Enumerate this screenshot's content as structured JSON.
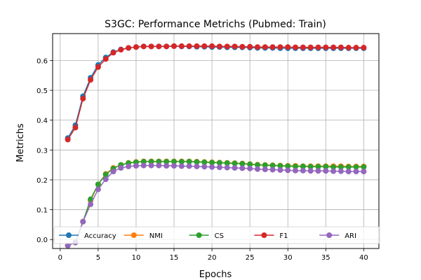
{
  "chart_data": {
    "type": "line",
    "title": "S3GC: Performance Metrichs (Pubmed: Train)",
    "xlabel": "Epochs",
    "ylabel": "Metrichs",
    "xlim": [
      -1,
      42
    ],
    "ylim": [
      -0.03,
      0.69
    ],
    "xticks": [
      0,
      5,
      10,
      15,
      20,
      25,
      30,
      35,
      40
    ],
    "yticks": [
      0.0,
      0.1,
      0.2,
      0.3,
      0.4,
      0.5,
      0.6
    ],
    "grid": true,
    "legend_position": "bottom",
    "x": [
      1,
      2,
      3,
      4,
      5,
      6,
      7,
      8,
      9,
      10,
      11,
      12,
      13,
      14,
      15,
      16,
      17,
      18,
      19,
      20,
      21,
      22,
      23,
      24,
      25,
      26,
      27,
      28,
      29,
      30,
      31,
      32,
      33,
      34,
      35,
      36,
      37,
      38,
      39,
      40
    ],
    "series": [
      {
        "name": "Accuracy",
        "color": "#1f77b4",
        "values": [
          0.34,
          0.383,
          0.48,
          0.542,
          0.585,
          0.61,
          0.628,
          0.637,
          0.642,
          0.645,
          0.647,
          0.647,
          0.647,
          0.647,
          0.648,
          0.647,
          0.647,
          0.646,
          0.646,
          0.645,
          0.645,
          0.644,
          0.644,
          0.644,
          0.643,
          0.642,
          0.642,
          0.642,
          0.641,
          0.641,
          0.641,
          0.641,
          0.641,
          0.641,
          0.641,
          0.641,
          0.641,
          0.641,
          0.641,
          0.641
        ]
      },
      {
        "name": "NMI",
        "color": "#ff7f0e",
        "values": [
          -0.02,
          -0.01,
          0.06,
          0.13,
          0.185,
          0.22,
          0.24,
          0.25,
          0.257,
          0.26,
          0.262,
          0.262,
          0.262,
          0.262,
          0.262,
          0.262,
          0.262,
          0.261,
          0.26,
          0.259,
          0.258,
          0.257,
          0.256,
          0.255,
          0.253,
          0.251,
          0.25,
          0.249,
          0.248,
          0.247,
          0.247,
          0.246,
          0.246,
          0.246,
          0.246,
          0.246,
          0.246,
          0.245,
          0.245,
          0.245
        ]
      },
      {
        "name": "CS",
        "color": "#2ca02c",
        "values": [
          -0.02,
          -0.01,
          0.06,
          0.135,
          0.185,
          0.218,
          0.238,
          0.25,
          0.256,
          0.259,
          0.261,
          0.261,
          0.261,
          0.261,
          0.261,
          0.261,
          0.261,
          0.26,
          0.259,
          0.258,
          0.257,
          0.256,
          0.255,
          0.254,
          0.252,
          0.25,
          0.249,
          0.248,
          0.247,
          0.246,
          0.245,
          0.245,
          0.244,
          0.244,
          0.244,
          0.243,
          0.243,
          0.243,
          0.243,
          0.243
        ]
      },
      {
        "name": "F1",
        "color": "#d62728",
        "values": [
          0.335,
          0.375,
          0.472,
          0.535,
          0.578,
          0.605,
          0.626,
          0.636,
          0.642,
          0.645,
          0.647,
          0.647,
          0.647,
          0.647,
          0.648,
          0.648,
          0.648,
          0.648,
          0.648,
          0.648,
          0.647,
          0.647,
          0.647,
          0.646,
          0.646,
          0.645,
          0.645,
          0.645,
          0.645,
          0.645,
          0.644,
          0.644,
          0.644,
          0.644,
          0.644,
          0.644,
          0.644,
          0.643,
          0.643,
          0.643
        ]
      },
      {
        "name": "ARI",
        "color": "#9467bd",
        "values": [
          -0.02,
          -0.01,
          0.06,
          0.118,
          0.168,
          0.202,
          0.228,
          0.24,
          0.245,
          0.247,
          0.248,
          0.248,
          0.248,
          0.247,
          0.247,
          0.246,
          0.246,
          0.245,
          0.244,
          0.243,
          0.242,
          0.241,
          0.24,
          0.239,
          0.238,
          0.236,
          0.235,
          0.234,
          0.233,
          0.232,
          0.231,
          0.231,
          0.23,
          0.23,
          0.23,
          0.229,
          0.229,
          0.228,
          0.228,
          0.228
        ]
      }
    ]
  }
}
